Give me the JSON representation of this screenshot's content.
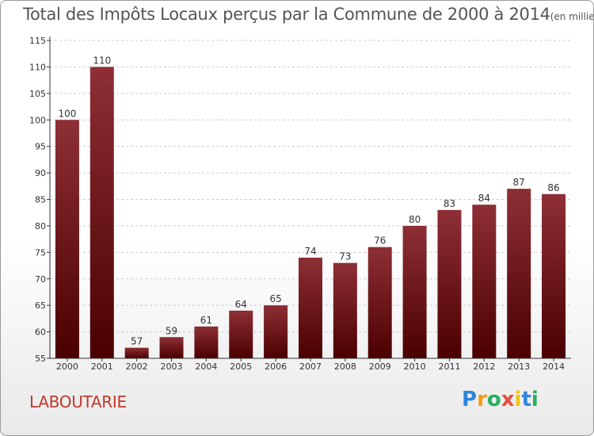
{
  "title": "Total des Impôts Locaux perçus par la Commune de 2000 à 2014",
  "title_unit": "(en milliers d'€)",
  "commune": "LABOUTARIE",
  "brand": {
    "letters": [
      "P",
      "r",
      "o",
      "x",
      "i",
      "t",
      "i"
    ],
    "colors": [
      "#2e86de",
      "#f39c12",
      "#27ae60",
      "#e74c3c",
      "#f1c40f",
      "#2e86de",
      "#27ae60"
    ]
  },
  "colors": {
    "bar_top": "#8e2f36",
    "bar_bottom": "#4a0000",
    "axis": "#333333",
    "grid": "#cccccc",
    "commune": "#c0392b"
  },
  "chart_data": {
    "type": "bar",
    "title": "Total des Impôts Locaux perçus par la Commune de 2000 à 2014",
    "categories": [
      "2000",
      "2001",
      "2002",
      "2003",
      "2004",
      "2005",
      "2006",
      "2007",
      "2008",
      "2009",
      "2010",
      "2011",
      "2012",
      "2013",
      "2014"
    ],
    "values": [
      100,
      110,
      57,
      59,
      61,
      64,
      65,
      74,
      73,
      76,
      80,
      83,
      84,
      87,
      86
    ],
    "ylim": [
      55,
      115
    ],
    "yticks": [
      55,
      60,
      65,
      70,
      75,
      80,
      85,
      90,
      95,
      100,
      105,
      110,
      115
    ],
    "grid": true,
    "data_labels": true
  }
}
